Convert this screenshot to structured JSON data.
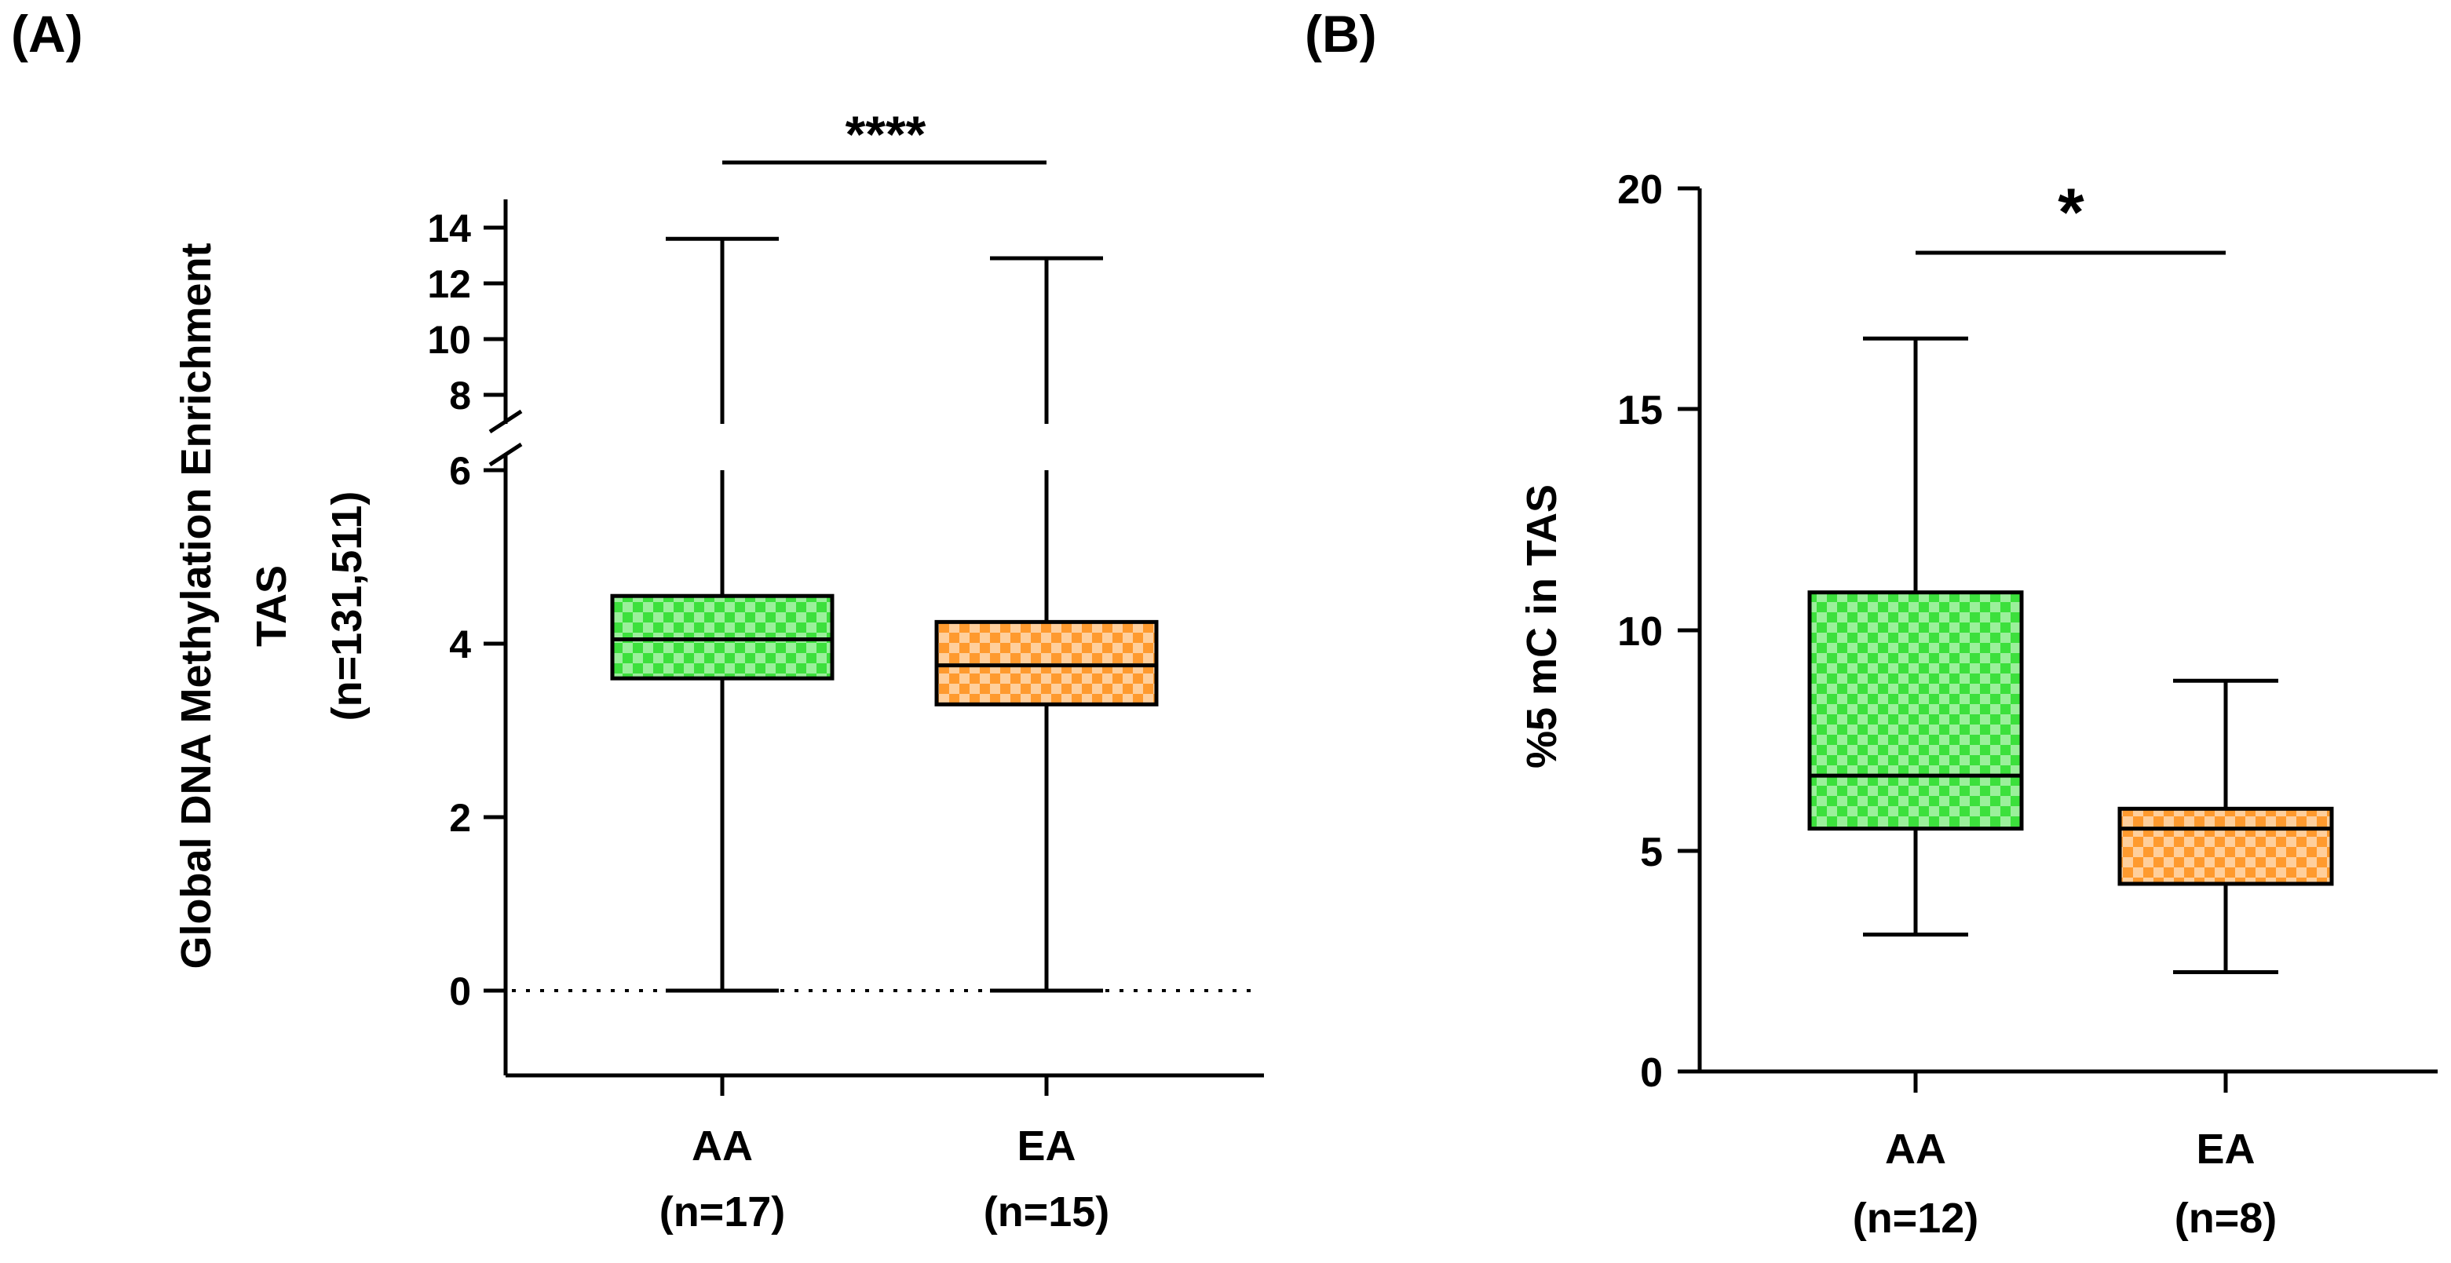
{
  "colors": {
    "aa_fill": "#3ce03c",
    "aa_check": "#9bf09b",
    "ea_fill": "#ff9a2e",
    "ea_check": "#ffcf9c",
    "axis": "#000000"
  },
  "chart_data": [
    {
      "panel_label": "(A)",
      "type": "box",
      "title": "",
      "xlabel": "",
      "ylabel_lines": [
        "Global DNA Methylation Enrichment",
        "TAS",
        "(n=131,511)"
      ],
      "categories": [
        "AA",
        "EA"
      ],
      "category_ns": [
        "(n=17)",
        "(n=15)"
      ],
      "broken_axis": {
        "lower_range": [
          -1,
          6
        ],
        "upper_range": [
          7,
          14.5
        ],
        "lower_ticks": [
          "0",
          "2",
          "4",
          "6"
        ],
        "upper_ticks": [
          "8",
          "10",
          "12",
          "14"
        ]
      },
      "reference_line": {
        "y": 0,
        "style": "dotted"
      },
      "series": [
        {
          "name": "AA",
          "n": 17,
          "min": 0,
          "q1": 3.6,
          "median": 4.05,
          "q3": 4.55,
          "max": 13.6
        },
        {
          "name": "EA",
          "n": 15,
          "min": 0,
          "q1": 3.3,
          "median": 3.75,
          "q3": 4.25,
          "max": 12.9
        }
      ],
      "significance": {
        "text": "****",
        "between": [
          "AA",
          "EA"
        ]
      }
    },
    {
      "panel_label": "(B)",
      "type": "box",
      "title": "",
      "xlabel": "",
      "ylabel": "%5 mC in TAS",
      "categories": [
        "AA",
        "EA"
      ],
      "category_ns": [
        "(n=12)",
        "(n=8)"
      ],
      "ylim": [
        0,
        20
      ],
      "yticks": [
        "0",
        "5",
        "10",
        "15",
        "20"
      ],
      "series": [
        {
          "name": "AA",
          "n": 12,
          "min": 3.1,
          "q1": 5.5,
          "median": 6.7,
          "q3": 10.85,
          "max": 16.6
        },
        {
          "name": "EA",
          "n": 8,
          "min": 2.25,
          "q1": 4.25,
          "median": 5.5,
          "q3": 5.95,
          "max": 8.85
        }
      ],
      "significance": {
        "text": "*",
        "between": [
          "AA",
          "EA"
        ]
      }
    }
  ]
}
